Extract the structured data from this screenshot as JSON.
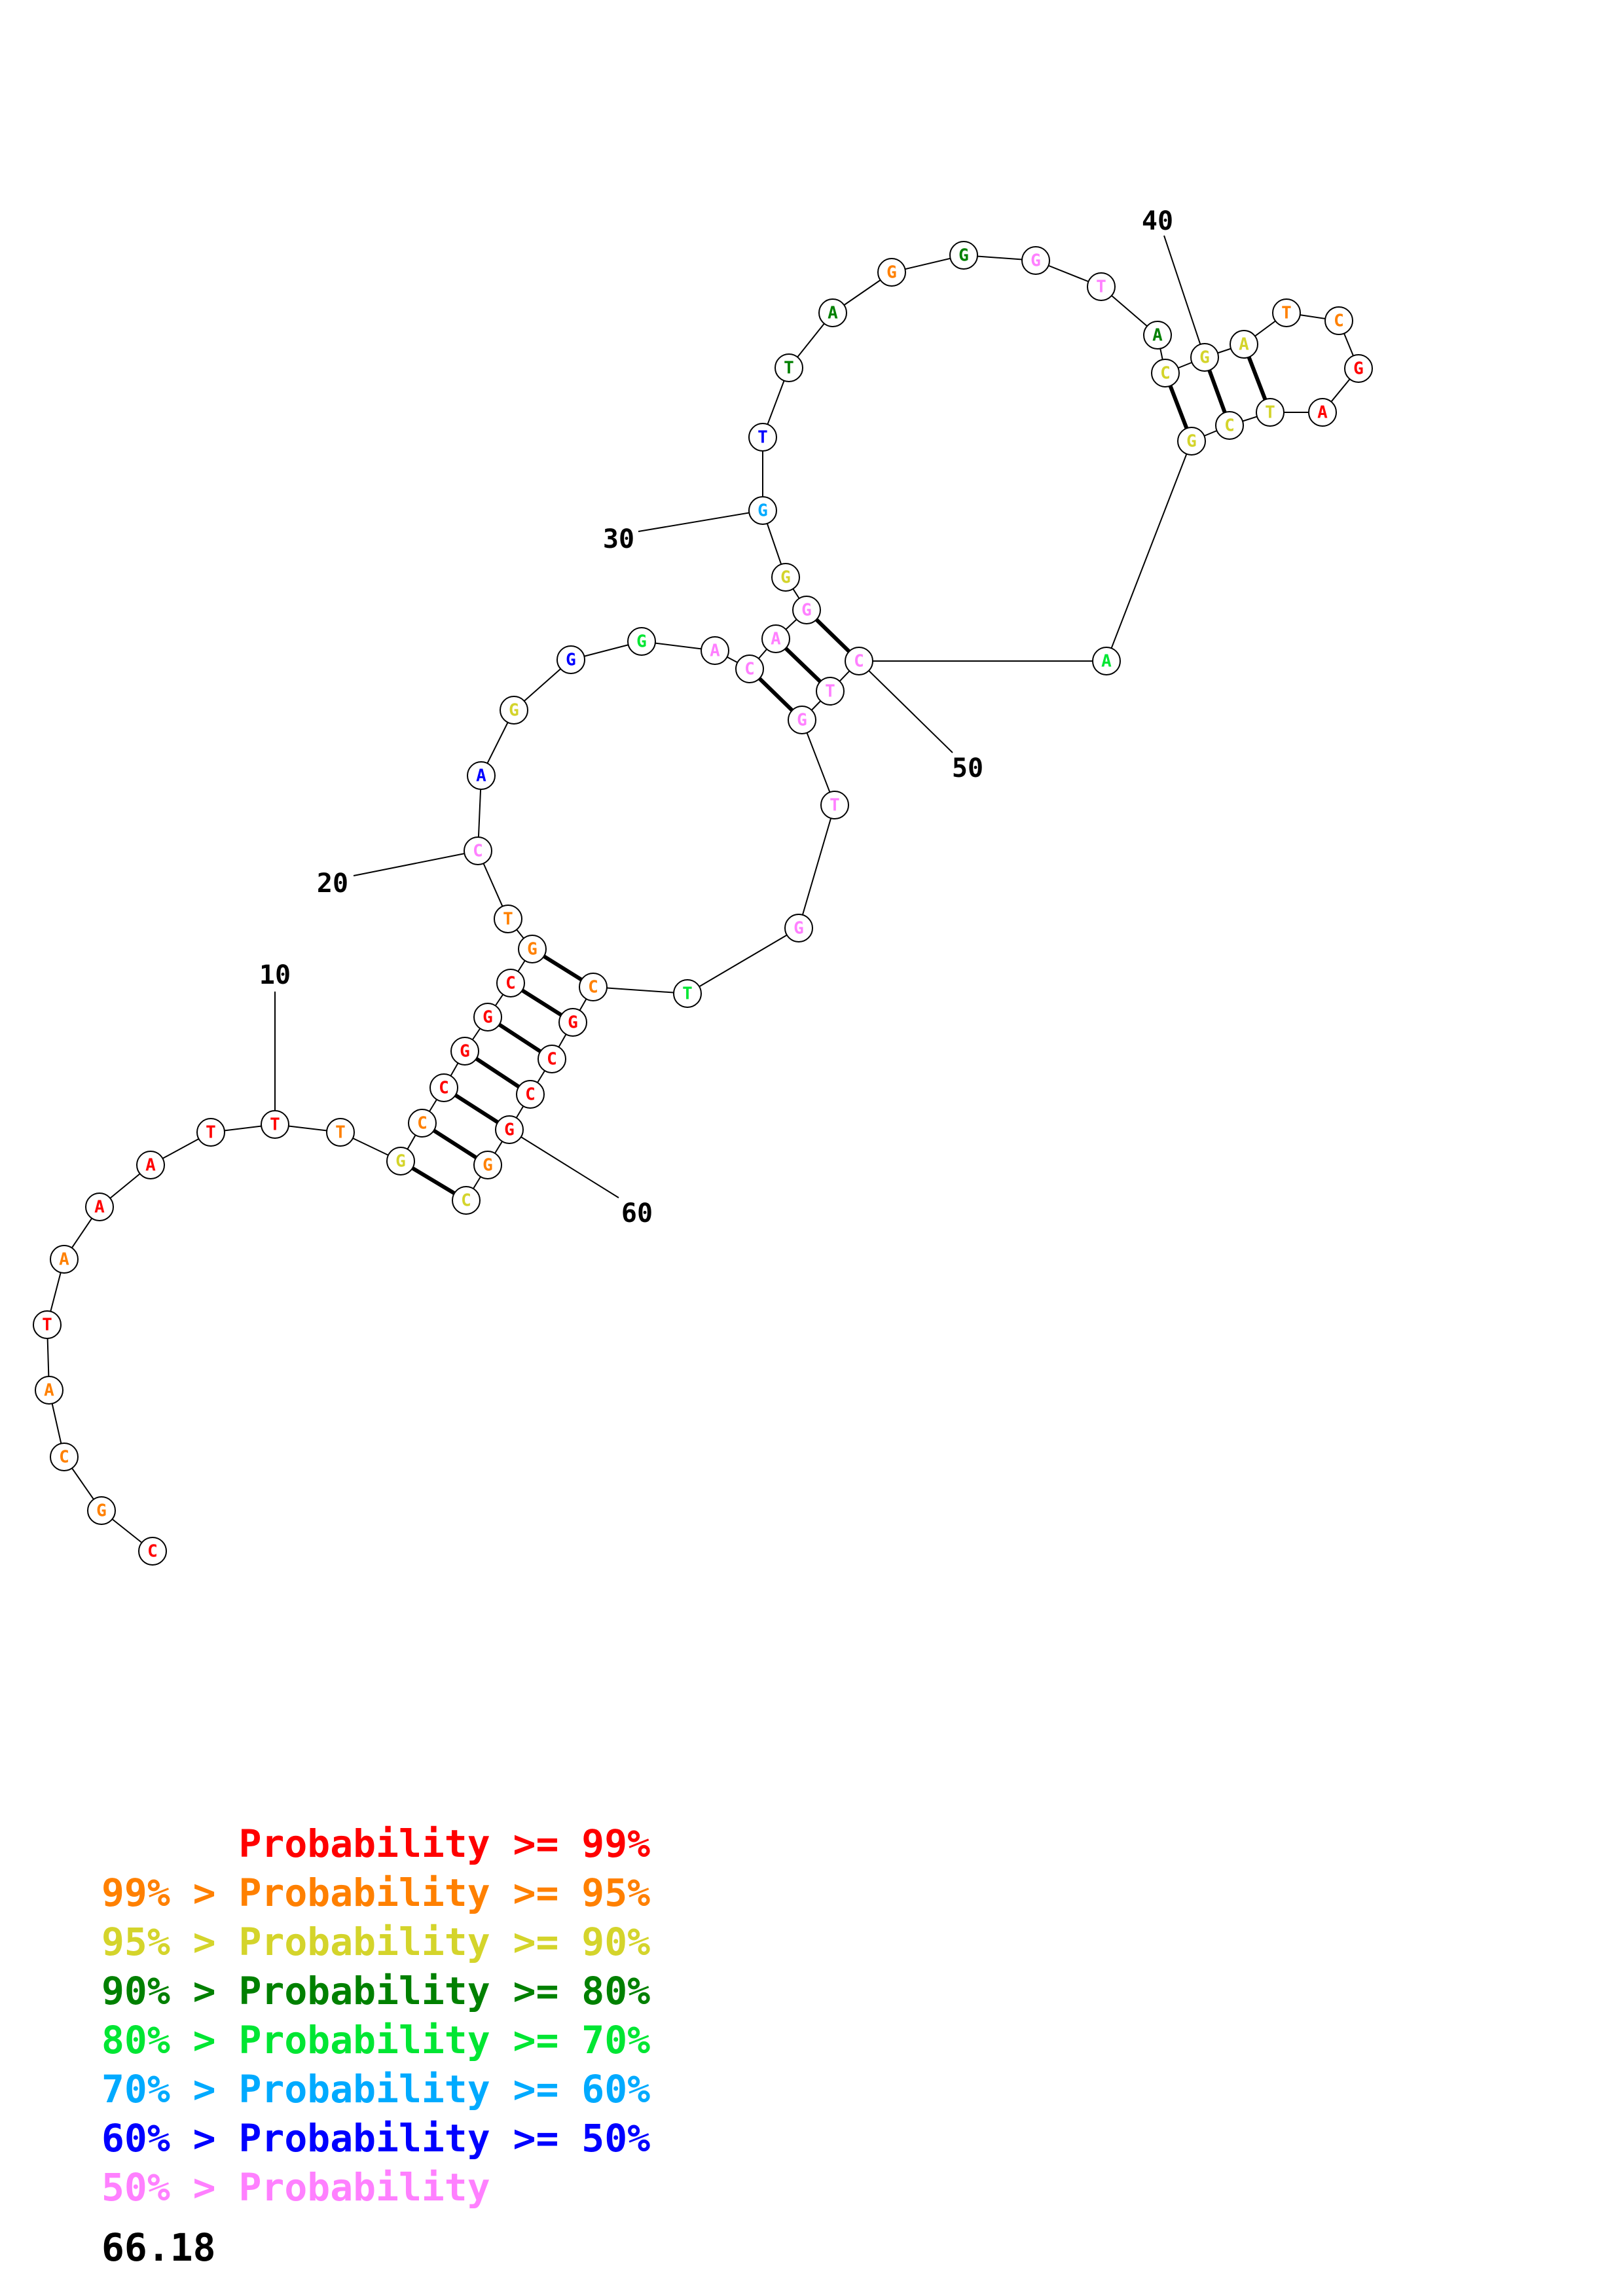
{
  "colors": {
    "ge99": "#ff0000",
    "ge95": "#ff8000",
    "ge90": "#d4d42b",
    "ge80": "#008000",
    "ge70": "#00e633",
    "ge60": "#00aaff",
    "ge50": "#0000ff",
    "lt50": "#ff80ff"
  },
  "structure": {
    "sequence": [
      {
        "base": "C",
        "prob": "ge99"
      },
      {
        "base": "G",
        "prob": "ge95"
      },
      {
        "base": "C",
        "prob": "ge95"
      },
      {
        "base": "A",
        "prob": "ge95"
      },
      {
        "base": "T",
        "prob": "ge99"
      },
      {
        "base": "A",
        "prob": "ge95"
      },
      {
        "base": "A",
        "prob": "ge99"
      },
      {
        "base": "A",
        "prob": "ge99"
      },
      {
        "base": "T",
        "prob": "ge99"
      },
      {
        "base": "T",
        "prob": "ge99"
      },
      {
        "base": "T",
        "prob": "ge95"
      },
      {
        "base": "G",
        "prob": "ge90"
      },
      {
        "base": "C",
        "prob": "ge95"
      },
      {
        "base": "C",
        "prob": "ge99"
      },
      {
        "base": "G",
        "prob": "ge99"
      },
      {
        "base": "G",
        "prob": "ge99"
      },
      {
        "base": "C",
        "prob": "ge99"
      },
      {
        "base": "G",
        "prob": "ge95"
      },
      {
        "base": "T",
        "prob": "ge95"
      },
      {
        "base": "C",
        "prob": "lt50"
      },
      {
        "base": "A",
        "prob": "ge50"
      },
      {
        "base": "G",
        "prob": "ge90"
      },
      {
        "base": "G",
        "prob": "ge50"
      },
      {
        "base": "G",
        "prob": "ge70"
      },
      {
        "base": "A",
        "prob": "lt50"
      },
      {
        "base": "C",
        "prob": "lt50"
      },
      {
        "base": "A",
        "prob": "lt50"
      },
      {
        "base": "G",
        "prob": "lt50"
      },
      {
        "base": "G",
        "prob": "ge90"
      },
      {
        "base": "G",
        "prob": "ge60"
      },
      {
        "base": "T",
        "prob": "ge50"
      },
      {
        "base": "T",
        "prob": "ge80"
      },
      {
        "base": "A",
        "prob": "ge80"
      },
      {
        "base": "G",
        "prob": "ge95"
      },
      {
        "base": "G",
        "prob": "ge80"
      },
      {
        "base": "G",
        "prob": "lt50"
      },
      {
        "base": "T",
        "prob": "lt50"
      },
      {
        "base": "A",
        "prob": "ge80"
      },
      {
        "base": "C",
        "prob": "ge90"
      },
      {
        "base": "G",
        "prob": "ge90"
      },
      {
        "base": "A",
        "prob": "ge90"
      },
      {
        "base": "T",
        "prob": "ge95"
      },
      {
        "base": "C",
        "prob": "ge95"
      },
      {
        "base": "G",
        "prob": "ge99"
      },
      {
        "base": "A",
        "prob": "ge99"
      },
      {
        "base": "T",
        "prob": "ge90"
      },
      {
        "base": "C",
        "prob": "ge90"
      },
      {
        "base": "G",
        "prob": "ge90"
      },
      {
        "base": "A",
        "prob": "ge70"
      },
      {
        "base": "C",
        "prob": "lt50"
      },
      {
        "base": "T",
        "prob": "lt50"
      },
      {
        "base": "G",
        "prob": "lt50"
      },
      {
        "base": "T",
        "prob": "lt50"
      },
      {
        "base": "G",
        "prob": "lt50"
      },
      {
        "base": "T",
        "prob": "ge70"
      },
      {
        "base": "C",
        "prob": "ge95"
      },
      {
        "base": "G",
        "prob": "ge99"
      },
      {
        "base": "C",
        "prob": "ge99"
      },
      {
        "base": "C",
        "prob": "ge99"
      },
      {
        "base": "G",
        "prob": "ge99"
      },
      {
        "base": "G",
        "prob": "ge95"
      },
      {
        "base": "C",
        "prob": "ge90"
      }
    ],
    "pairs": [
      [
        12,
        62
      ],
      [
        13,
        61
      ],
      [
        14,
        60
      ],
      [
        15,
        59
      ],
      [
        16,
        58
      ],
      [
        17,
        57
      ],
      [
        18,
        56
      ],
      [
        26,
        52
      ],
      [
        27,
        51
      ],
      [
        28,
        50
      ],
      [
        39,
        48
      ],
      [
        40,
        47
      ],
      [
        41,
        46
      ]
    ],
    "position_labels": [
      {
        "index": 10,
        "text": "10"
      },
      {
        "index": 20,
        "text": "20"
      },
      {
        "index": 30,
        "text": "30"
      },
      {
        "index": 40,
        "text": "40"
      },
      {
        "index": 50,
        "text": "50"
      },
      {
        "index": 60,
        "text": "60"
      }
    ]
  },
  "legend": [
    {
      "prefix": "    ",
      "text": "Probability >= 99%",
      "prob": "ge99"
    },
    {
      "prefix": "99% > ",
      "text": "Probability >= 95%",
      "prob": "ge95"
    },
    {
      "prefix": "95% > ",
      "text": "Probability >= 90%",
      "prob": "ge90"
    },
    {
      "prefix": "90% > ",
      "text": "Probability >= 80%",
      "prob": "ge80"
    },
    {
      "prefix": "80% > ",
      "text": "Probability >= 70%",
      "prob": "ge70"
    },
    {
      "prefix": "70% > ",
      "text": "Probability >= 60%",
      "prob": "ge60"
    },
    {
      "prefix": "60% > ",
      "text": "Probability >= 50%",
      "prob": "ge50"
    },
    {
      "prefix": "50% > ",
      "text": "Probability",
      "prob": "lt50"
    }
  ],
  "score": "66.18"
}
